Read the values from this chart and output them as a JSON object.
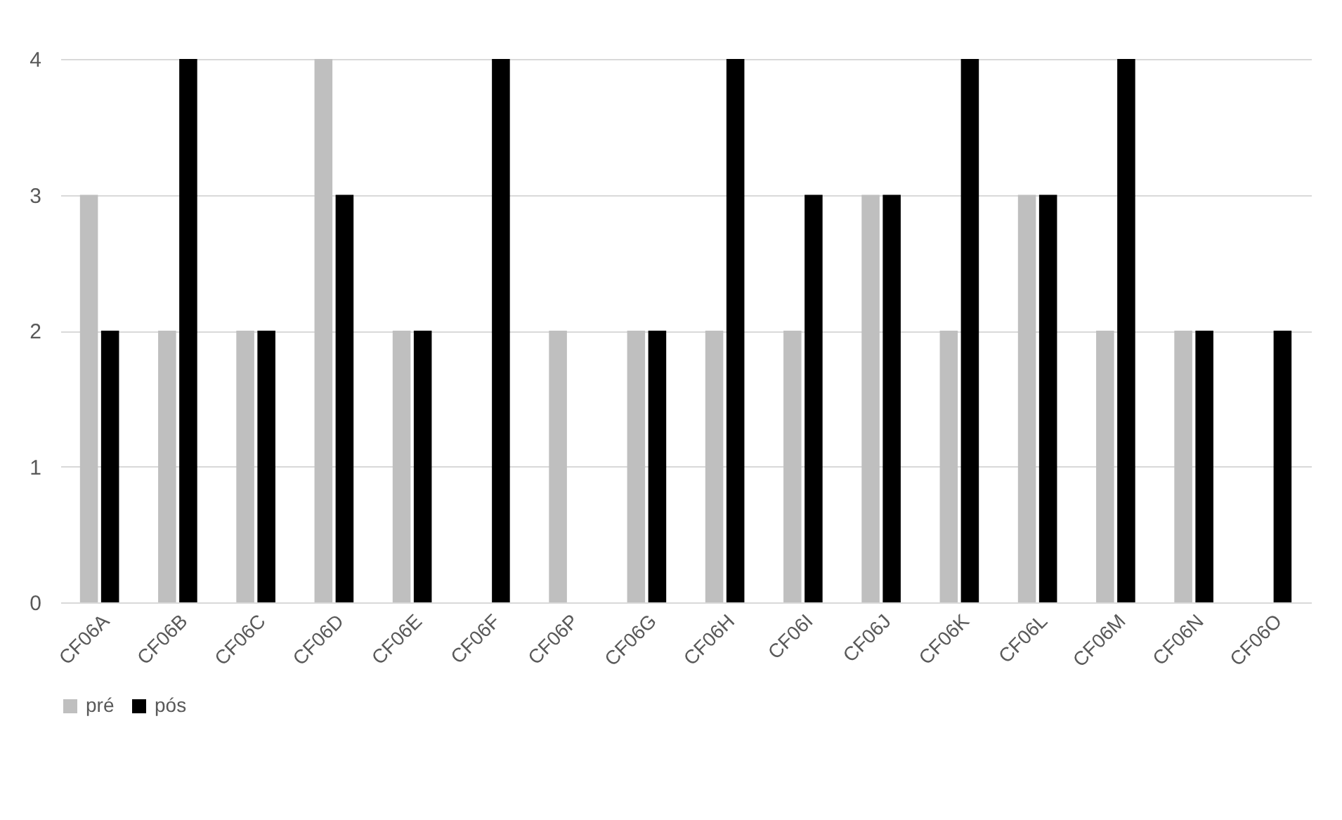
{
  "chart_data": {
    "type": "bar",
    "categories": [
      "CF06A",
      "CF06B",
      "CF06C",
      "CF06D",
      "CF06E",
      "CF06F",
      "CF06P",
      "CF06G",
      "CF06H",
      "CF06I",
      "CF06J",
      "CF06K",
      "CF06L",
      "CF06M",
      "CF06N",
      "CF06O"
    ],
    "series": [
      {
        "name": "pré",
        "color": "#bfbfbf",
        "values": [
          3,
          2,
          2,
          4,
          2,
          0,
          2,
          2,
          2,
          2,
          3,
          2,
          3,
          2,
          2,
          0
        ]
      },
      {
        "name": "pós",
        "color": "#000000",
        "values": [
          2,
          4,
          2,
          3,
          2,
          4,
          0,
          2,
          4,
          3,
          3,
          4,
          3,
          4,
          2,
          2
        ]
      }
    ],
    "ylim": [
      0,
      4
    ],
    "yticks": [
      0,
      1,
      2,
      3,
      4
    ],
    "grid": "y",
    "legend": "bottom"
  }
}
